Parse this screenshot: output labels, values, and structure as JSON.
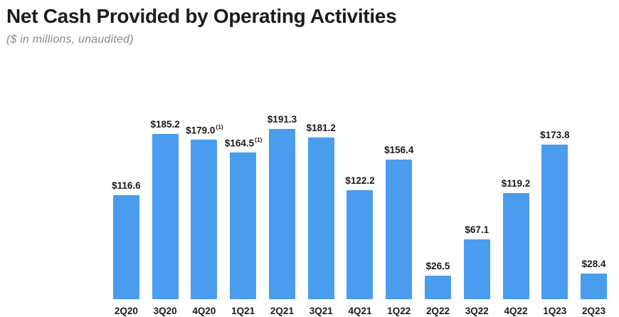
{
  "header": {
    "title": "Net Cash Provided by Operating Activities",
    "subtitle": "($ in millions, unaudited)"
  },
  "colors": {
    "bar": "#4A9CEF",
    "title_text": "#1c1c1e",
    "subtitle_text": "#8a8a8e",
    "label_text": "#1a1a1a"
  },
  "chart_data": {
    "type": "bar",
    "title": "Net Cash Provided by Operating Activities",
    "subtitle": "($ in millions, unaudited)",
    "unit": "$ in millions",
    "categories": [
      "2Q20",
      "3Q20",
      "4Q20",
      "1Q21",
      "2Q21",
      "3Q21",
      "4Q21",
      "1Q22",
      "2Q22",
      "3Q22",
      "4Q22",
      "1Q23",
      "2Q23"
    ],
    "values": [
      116.6,
      185.2,
      179.0,
      164.5,
      191.3,
      181.2,
      122.2,
      156.4,
      26.5,
      67.1,
      119.2,
      173.8,
      28.4
    ],
    "value_labels": [
      "$116.6",
      "$185.2",
      "$179.0",
      "$164.5",
      "$191.3",
      "$181.2",
      "$122.2",
      "$156.4",
      "$26.5",
      "$67.1",
      "$119.2",
      "$173.8",
      "$28.4"
    ],
    "footnote_markers": [
      "",
      "",
      "(1)",
      "(1)",
      "",
      "",
      "",
      "",
      "",
      "",
      "",
      "",
      ""
    ],
    "xlabel": "",
    "ylabel": "",
    "ylim": [
      0,
      200
    ],
    "grid": false,
    "axis_lines": false,
    "legend": null,
    "bar_color": "#4A9CEF"
  }
}
